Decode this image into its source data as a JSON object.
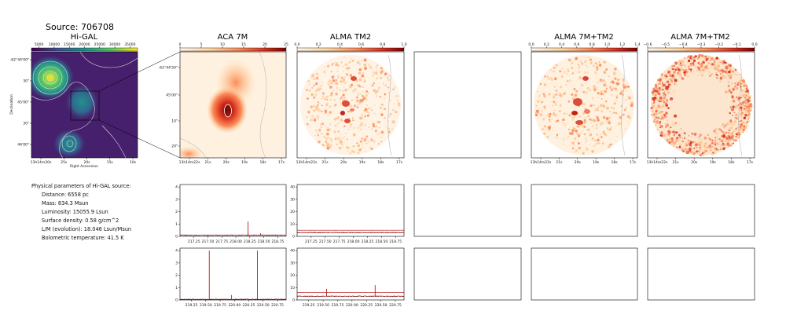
{
  "title": "Source: 706708",
  "panels": {
    "higal": {
      "title": "Hi-GAL",
      "colorbar_ticks": [
        "5000",
        "10000",
        "15000",
        "20000",
        "25000",
        "30000",
        "35000"
      ],
      "ra_ticks": [
        "13h14m30s",
        "25s",
        "20s",
        "15s",
        "10s"
      ],
      "dec_ticks": [
        "-62°44'00\"",
        "30\"",
        "45'00\"",
        "30\"",
        "46'00\""
      ],
      "xlabel": "Right Ascension",
      "ylabel": "Declination"
    },
    "aca7m": {
      "title": "ACA 7M",
      "colorbar_ticks": [
        "0",
        "5",
        "10",
        "15",
        "20",
        "25"
      ],
      "ra_ticks": [
        "13h14m22s",
        "21s",
        "20s",
        "19s",
        "18s",
        "17s"
      ],
      "dec_ticks": [
        "-62°44'50\"",
        "45'00\"",
        "10\"",
        "20\""
      ]
    },
    "almatm2": {
      "title": "ALMA TM2",
      "colorbar_ticks": [
        "0.0",
        "0.2",
        "0.4",
        "0.6",
        "0.8",
        "1.0"
      ],
      "ra_ticks": [
        "13h14m22s",
        "21s",
        "20s",
        "19s",
        "18s",
        "17s"
      ]
    },
    "alma7mtm2": {
      "title": "ALMA 7M+TM2",
      "colorbar_ticks": [
        "0.0",
        "0.2",
        "0.4",
        "0.6",
        "0.8",
        "1.0",
        "1.2",
        "1.4"
      ],
      "ra_ticks": [
        "13h14m22s",
        "21s",
        "20s",
        "19s",
        "18s",
        "17s"
      ]
    },
    "alma7mtm2b": {
      "title": "ALMA 7M+TM2",
      "colorbar_ticks": [
        "−0.6",
        "−0.5",
        "−0.4",
        "−0.3",
        "−0.2",
        "−0.1",
        "0.0"
      ],
      "ra_ticks": [
        "13h14m22s",
        "21s",
        "20s",
        "19s",
        "18s",
        "17s"
      ]
    }
  },
  "params": {
    "header": "Physical parameters of Hi-GAL source:",
    "lines": [
      "Distance: 6558 pc",
      "Mass: 834.3 Msun",
      "Luminosity: 15055.9 Lsun",
      "Surface density: 0.58 g/cm^2",
      "L/M (evolution): 18.046 Lsun/Msun",
      "Bolometric temperature: 41.5 K"
    ]
  },
  "chart_data": [
    {
      "type": "line",
      "panel": "spectrum row 1 (ACA 7M)",
      "x_ticks": [
        "217.25",
        "217.50",
        "217.75",
        "218.00",
        "218.25",
        "218.50",
        "218.75"
      ],
      "y_ticks": [
        "0",
        "1",
        "2",
        "3",
        "4"
      ],
      "xlim": [
        217.0,
        218.9
      ],
      "ylim": [
        0,
        4.2
      ],
      "baseline": 0.1,
      "peaks": [
        {
          "x": 218.22,
          "y": 1.2
        },
        {
          "x": 218.44,
          "y": 0.25
        }
      ]
    },
    {
      "type": "line",
      "panel": "spectrum row 1 (ALMA TM2)",
      "x_ticks": [
        "217.25",
        "217.50",
        "217.75",
        "218.00",
        "218.25",
        "218.50",
        "218.75"
      ],
      "y_ticks": [
        "0",
        "10",
        "20",
        "30",
        "40"
      ],
      "xlim": [
        217.0,
        218.9
      ],
      "ylim": [
        0,
        42
      ],
      "baseline": 3,
      "upper_line": 5,
      "peaks": []
    },
    {
      "type": "line",
      "panel": "spectrum row 2 (ACA 7M)",
      "x_ticks": [
        "219.25",
        "219.50",
        "219.75",
        "220.00",
        "220.25",
        "220.50",
        "220.75"
      ],
      "y_ticks": [
        "0",
        "1",
        "2",
        "3",
        "4"
      ],
      "xlim": [
        219.05,
        220.9
      ],
      "ylim": [
        0,
        4.2
      ],
      "baseline": 0.05,
      "peaks": [
        {
          "x": 219.56,
          "y": 4.0
        },
        {
          "x": 219.95,
          "y": 0.4
        },
        {
          "x": 220.4,
          "y": 4.0
        }
      ]
    },
    {
      "type": "line",
      "panel": "spectrum row 2 (ALMA TM2)",
      "x_ticks": [
        "219.25",
        "219.50",
        "219.75",
        "220.00",
        "220.25",
        "220.50",
        "220.75"
      ],
      "y_ticks": [
        "0",
        "10",
        "20",
        "30",
        "40"
      ],
      "xlim": [
        219.05,
        220.9
      ],
      "ylim": [
        0,
        42
      ],
      "baseline": 3,
      "upper_line": 6,
      "peaks": [
        {
          "x": 219.56,
          "y": 9
        },
        {
          "x": 220.4,
          "y": 12
        }
      ]
    }
  ]
}
